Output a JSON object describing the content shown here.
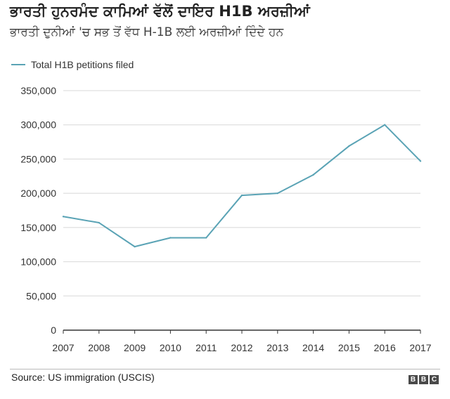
{
  "header": {
    "title": "ਭਾਰਤੀ ਹੁਨਰਮੰਦ ਕਾਮਿਆਂ ਵੱਲੋਂ ਦਾਇਰ H1B ਅਰਜ਼ੀਆਂ",
    "subtitle": "ਭਾਰਤੀ ਦੁਨੀਆਂ 'ਚ ਸਭ ਤੋਂ ਵੱਧ H-1B ਲਈ ਅਰਜ਼ੀਆਂ ਦਿੰਦੇ ਹਨ"
  },
  "legend": {
    "label": "Total H1B petitions filed"
  },
  "footer": {
    "source": "Source: US immigration (USCIS)",
    "logo_letters": [
      "B",
      "B",
      "C"
    ]
  },
  "colors": {
    "line": "#5aa3b5",
    "grid": "#d8d8d8",
    "axis": "#333333"
  },
  "chart_data": {
    "type": "line",
    "title": "ਭਾਰਤੀ ਹੁਨਰਮੰਦ ਕਾਮਿਆਂ ਵੱਲੋਂ ਦਾਇਰ H1B ਅਰਜ਼ੀਆਂ",
    "xlabel": "",
    "ylabel": "",
    "categories": [
      "2007",
      "2008",
      "2009",
      "2010",
      "2011",
      "2012",
      "2013",
      "2014",
      "2015",
      "2016",
      "2017"
    ],
    "series": [
      {
        "name": "Total H1B petitions filed",
        "values": [
          166000,
          157000,
          122000,
          135000,
          135000,
          197000,
          200000,
          227000,
          269000,
          300000,
          247000
        ]
      }
    ],
    "ylim": [
      0,
      350000
    ],
    "yticks": [
      0,
      50000,
      100000,
      150000,
      200000,
      250000,
      300000,
      350000
    ],
    "ytick_labels": [
      "0",
      "50,000",
      "100,000",
      "150,000",
      "200,000",
      "250,000",
      "300,000",
      "350,000"
    ],
    "grid": true,
    "legend_position": "top-left"
  }
}
